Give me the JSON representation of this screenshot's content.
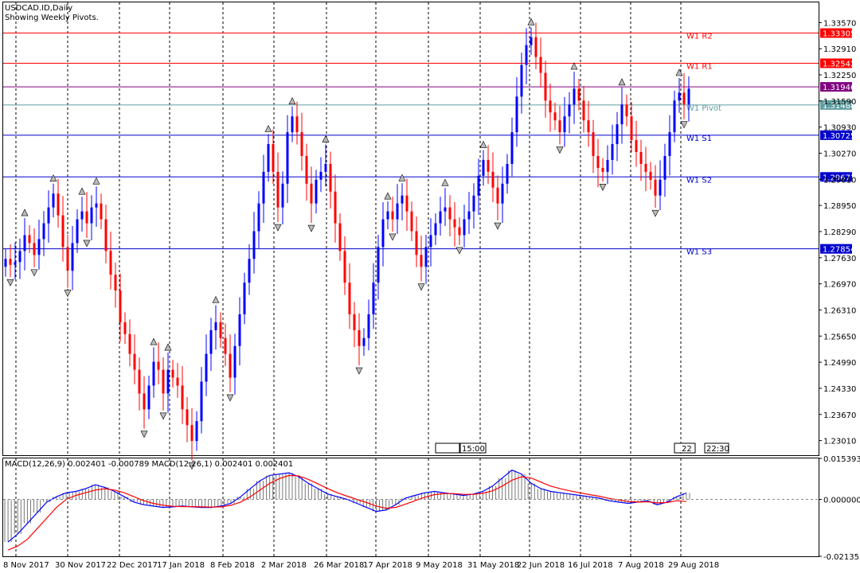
{
  "header": {
    "symbol_title": "USDCAD.ID,Daily",
    "subtitle": "Showing Weekly Pivots."
  },
  "macd": {
    "label": "MACD(12,26,9) 0.002401 -0.000789 MACD(12,26,1) 0.002401 0.002401",
    "axis_ticks": [
      "0.015393",
      "0.000000",
      "-0.021353"
    ]
  },
  "price_axis_ticks": [
    "1.33570",
    "1.32910",
    "1.32250",
    "1.31590",
    "1.30930",
    "1.30270",
    "1.29610",
    "1.28950",
    "1.28290",
    "1.27630",
    "1.26970",
    "1.26310",
    "1.25650",
    "1.24990",
    "1.24330",
    "1.23670",
    "1.23010"
  ],
  "x_axis_ticks": [
    "8 Nov 2017",
    "30 Nov 2017",
    "22 Dec 2017",
    "17 Jan 2018",
    "8 Feb 2018",
    "2 Mar 2018",
    "26 Mar 2018",
    "17 Apr 2018",
    "9 May 2018",
    "31 May 2018",
    "22 Jun 2018",
    "16 Jul 2018",
    "7 Aug 2018",
    "29 Aug 2018"
  ],
  "pivot_lines": [
    {
      "name": "W1 R2",
      "value": "1.33305",
      "color": "#ff0000",
      "badge_bg": "#ff0000"
    },
    {
      "name": "W1 R1",
      "value": "1.32542",
      "color": "#ff0000",
      "badge_bg": "#ff0000"
    },
    {
      "name": "",
      "value": "1.31946",
      "color": "#800080",
      "badge_bg": "#800080"
    },
    {
      "name": "W1 Pivot",
      "value": "1.31488",
      "color": "#5f9ea0",
      "badge_bg": "#5f9ea0"
    },
    {
      "name": "W1 S1",
      "value": "1.30725",
      "color": "#0000cd",
      "badge_bg": "#0000cd"
    },
    {
      "name": "W1 S2",
      "value": "1.29671",
      "color": "#0000cd",
      "badge_bg": "#0000cd"
    },
    {
      "name": "W1 S3",
      "value": "1.27854",
      "color": "#0000cd",
      "badge_bg": "#0000cd"
    }
  ],
  "scroll_markers": {
    "left_time": "15:00",
    "right_day": "22",
    "right_time": "22:30"
  },
  "colors": {
    "bull": "#0000ff",
    "bear": "#ff0000",
    "grid": "#000000",
    "macd_signal": "#ff0000",
    "macd_line": "#0000ff"
  },
  "chart_data": {
    "type": "candlestick",
    "price_range": [
      1.2264,
      1.3408
    ],
    "macd_range": [
      -0.021353,
      0.015393
    ],
    "series": [
      {
        "name": "USDCAD.ID",
        "values": [
          1.276,
          1.2745,
          1.2752,
          1.278,
          1.282,
          1.28,
          1.277,
          1.281,
          1.285,
          1.289,
          1.2925,
          1.287,
          1.279,
          1.273,
          1.28,
          1.286,
          1.288,
          1.285,
          1.289,
          1.29,
          1.286,
          1.278,
          1.272,
          1.268,
          1.26,
          1.257,
          1.252,
          1.248,
          1.242,
          1.238,
          1.244,
          1.25,
          1.248,
          1.242,
          1.248,
          1.246,
          1.244,
          1.238,
          1.234,
          1.23,
          1.235,
          1.245,
          1.252,
          1.258,
          1.26,
          1.256,
          1.252,
          1.246,
          1.254,
          1.262,
          1.27,
          1.276,
          1.283,
          1.29,
          1.298,
          1.305,
          1.298,
          1.289,
          1.295,
          1.308,
          1.312,
          1.308,
          1.302,
          1.295,
          1.29,
          1.296,
          1.298,
          1.3,
          1.293,
          1.285,
          1.278,
          1.27,
          1.262,
          1.258,
          1.254,
          1.256,
          1.262,
          1.27,
          1.279,
          1.286,
          1.288,
          1.286,
          1.29,
          1.292,
          1.288,
          1.283,
          1.277,
          1.274,
          1.279,
          1.282,
          1.285,
          1.288,
          1.289,
          1.286,
          1.284,
          1.282,
          1.286,
          1.288,
          1.292,
          1.297,
          1.301,
          1.298,
          1.294,
          1.29,
          1.295,
          1.3,
          1.308,
          1.317,
          1.325,
          1.33,
          1.332,
          1.327,
          1.323,
          1.316,
          1.313,
          1.311,
          1.308,
          1.312,
          1.315,
          1.319,
          1.316,
          1.311,
          1.308,
          1.302,
          1.299,
          1.298,
          1.301,
          1.305,
          1.31,
          1.315,
          1.312,
          1.306,
          1.303,
          1.3,
          1.298,
          1.296,
          1.292,
          1.296,
          1.302,
          1.308,
          1.316,
          1.318,
          1.315,
          1.319
        ]
      }
    ],
    "macd_series": [
      {
        "name": "MACD(12,26,9)",
        "values": [
          -0.016,
          -0.013,
          -0.009,
          -0.005,
          -0.001,
          0.001,
          0.0025,
          0.003,
          0.004,
          0.0055,
          0.0045,
          0.003,
          0.001,
          -0.001,
          -0.002,
          -0.0025,
          -0.003,
          -0.0028,
          -0.0025,
          -0.0028,
          -0.003,
          -0.003,
          -0.0025,
          -0.0015,
          0.001,
          0.004,
          0.007,
          0.009,
          0.0095,
          0.01,
          0.0085,
          0.006,
          0.004,
          0.002,
          0.001,
          0.0,
          -0.0015,
          -0.003,
          -0.0045,
          -0.004,
          -0.002,
          0.0005,
          0.0015,
          0.0025,
          0.003,
          0.0025,
          0.002,
          0.0015,
          0.002,
          0.003,
          0.005,
          0.008,
          0.011,
          0.0095,
          0.006,
          0.004,
          0.003,
          0.0025,
          0.002,
          0.0015,
          0.001,
          0.0005,
          -0.0005,
          -0.001,
          -0.0015,
          -0.001,
          -0.0005,
          -0.002,
          -0.001,
          0.001,
          0.0024
        ]
      },
      {
        "name": "Signal",
        "values": [
          -0.019,
          -0.0175,
          -0.015,
          -0.011,
          -0.007,
          -0.003,
          0.0,
          0.0015,
          0.0025,
          0.0035,
          0.004,
          0.0035,
          0.0025,
          0.001,
          -0.0005,
          -0.0015,
          -0.0022,
          -0.0026,
          -0.0027,
          -0.0027,
          -0.0028,
          -0.0029,
          -0.0028,
          -0.0022,
          -0.001,
          0.001,
          0.0035,
          0.006,
          0.0078,
          0.009,
          0.0088,
          0.0075,
          0.0058,
          0.004,
          0.0025,
          0.0012,
          0.0,
          -0.0012,
          -0.0025,
          -0.0033,
          -0.003,
          -0.0018,
          -0.0005,
          0.0008,
          0.0018,
          0.0022,
          0.0022,
          0.0019,
          0.0019,
          0.0023,
          0.0032,
          0.005,
          0.0072,
          0.0085,
          0.008,
          0.0065,
          0.005,
          0.004,
          0.0032,
          0.0025,
          0.0018,
          0.0012,
          0.0004,
          -0.0002,
          -0.0008,
          -0.001,
          -0.0009,
          -0.0013,
          -0.0012,
          -0.0005,
          -0.0008
        ]
      }
    ]
  }
}
